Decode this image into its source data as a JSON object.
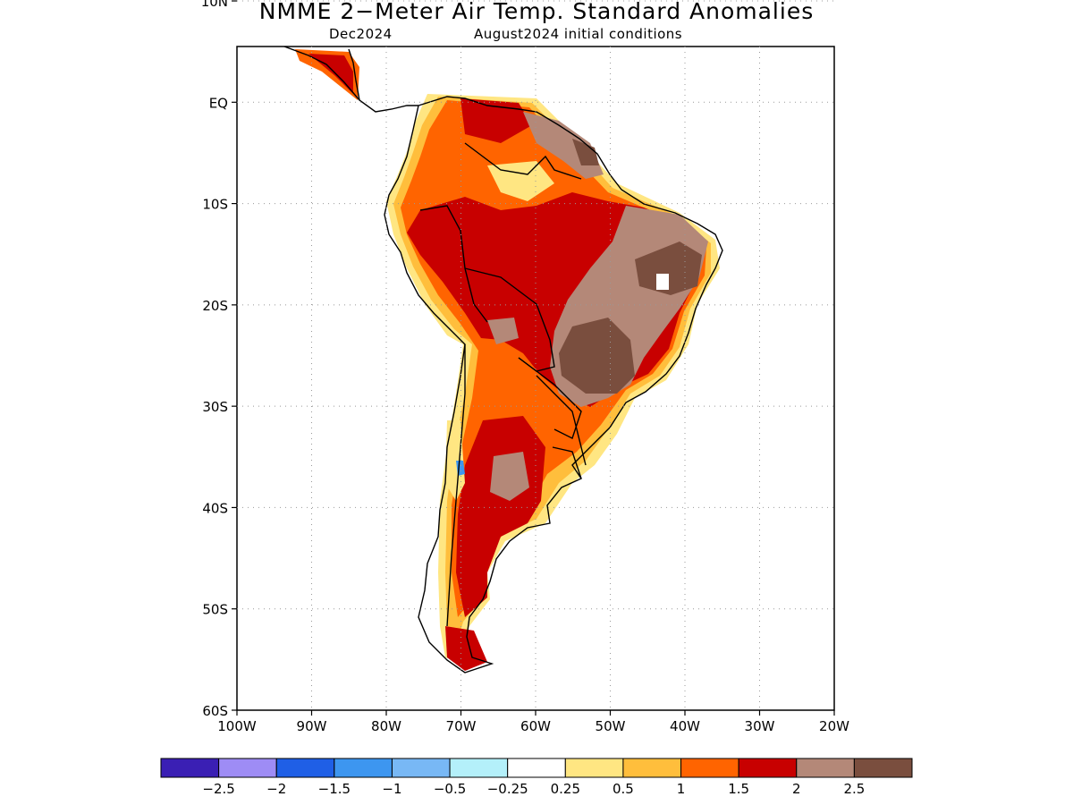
{
  "title": "NMME 2−Meter Air Temp. Standard Anomalies",
  "subtitle_left": "Dec2024",
  "subtitle_right": "August2024 initial conditions",
  "map": {
    "region": "South America",
    "lon_range": [
      -100,
      -20
    ],
    "lat_range": [
      -60,
      5.5
    ],
    "lon_ticks": [
      {
        "v": -100,
        "label": "100W"
      },
      {
        "v": -90,
        "label": "90W"
      },
      {
        "v": -80,
        "label": "80W"
      },
      {
        "v": -70,
        "label": "70W"
      },
      {
        "v": -60,
        "label": "60W"
      },
      {
        "v": -50,
        "label": "50W"
      },
      {
        "v": -40,
        "label": "40W"
      },
      {
        "v": -30,
        "label": "30W"
      },
      {
        "v": -20,
        "label": "20W"
      }
    ],
    "lat_ticks": [
      {
        "v": 10,
        "label": "10N"
      },
      {
        "v": 0,
        "label": "EQ"
      },
      {
        "v": -10,
        "label": "10S"
      },
      {
        "v": -20,
        "label": "20S"
      },
      {
        "v": -30,
        "label": "30S"
      },
      {
        "v": -40,
        "label": "40S"
      },
      {
        "v": -50,
        "label": "50S"
      },
      {
        "v": -60,
        "label": "60S"
      }
    ],
    "grid": "dotted"
  },
  "colorbar": {
    "colors": [
      "#3a1fb4",
      "#9e8cf5",
      "#1f5fe6",
      "#3d96f0",
      "#78b8f5",
      "#b4f0fa",
      "#ffffff",
      "#ffe682",
      "#ffbe3c",
      "#ff6400",
      "#c80000",
      "#b48878",
      "#7a4e3e"
    ],
    "labels": [
      "−2.5",
      "−2",
      "−1.5",
      "−1",
      "−0.5",
      "−0.25",
      "0.25",
      "0.5",
      "1",
      "1.5",
      "2",
      "2.5"
    ]
  }
}
